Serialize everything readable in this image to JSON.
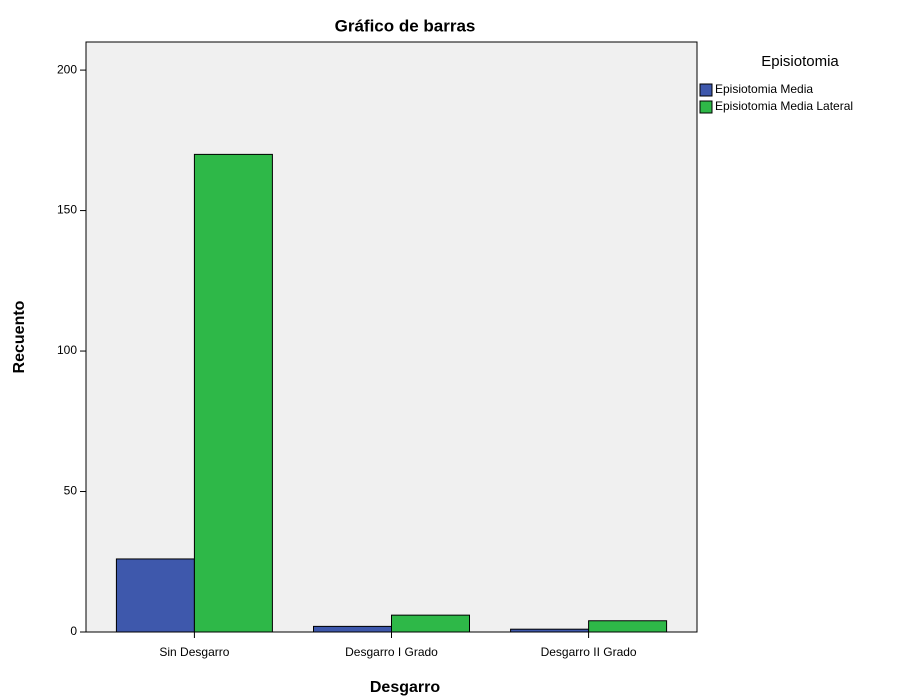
{
  "chart_data": {
    "type": "bar",
    "title": "Gráfico de barras",
    "x_label": "Desgarro",
    "y_label": "Recuento",
    "categories": [
      "Sin Desgarro",
      "Desgarro I Grado",
      "Desgarro II Grado"
    ],
    "legend_title": "Episiotomia",
    "series": [
      {
        "name": "Episiotomia Media",
        "color": "#3e58ac",
        "values": [
          26,
          2,
          1
        ]
      },
      {
        "name": "Episiotomia Media Lateral",
        "color": "#2eb848",
        "values": [
          170,
          6,
          4
        ]
      }
    ],
    "ylim": [
      0,
      210
    ],
    "yticks": [
      0,
      50,
      100,
      150,
      200
    ],
    "legend": "right"
  }
}
